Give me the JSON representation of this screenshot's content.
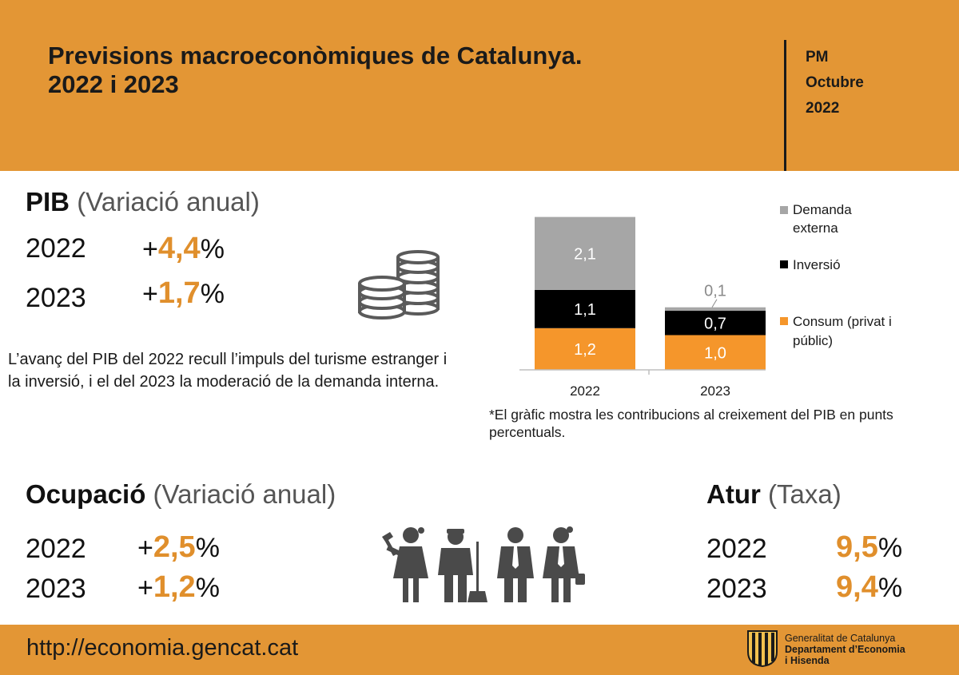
{
  "header": {
    "title_line1": "Previsions macroeconòmiques de Catalunya.",
    "title_line2": "2022 i 2023",
    "meta_line1": "PM",
    "meta_line2": "Octubre",
    "meta_line3": "2022"
  },
  "pib": {
    "title": "PIB",
    "subtitle": "(Variació anual)",
    "rows": [
      {
        "year": "2022",
        "sign": "+",
        "value": "4,4",
        "unit": "%"
      },
      {
        "year": "2023",
        "sign": "+",
        "value": "1,7",
        "unit": "%"
      }
    ],
    "text": "L’avanç del PIB del 2022 recull l’impuls del turisme estranger i la inversió, i el del 2023 la moderació de la demanda interna.",
    "icon": "coins-icon"
  },
  "chart_note": "*El gràfic mostra les contribucions al creixement del PIB en punts percentuals.",
  "chart_data": {
    "type": "bar",
    "stacked": true,
    "categories": [
      "2022",
      "2023"
    ],
    "series": [
      {
        "name": "Consum (privat i públic)",
        "values": [
          1.2,
          1.0
        ],
        "labels": [
          "1,2",
          "1,0"
        ],
        "color": "#f5962b"
      },
      {
        "name": "Inversió",
        "values": [
          1.1,
          0.7
        ],
        "labels": [
          "1,1",
          "0,7"
        ],
        "color": "#000000"
      },
      {
        "name": "Demanda externa",
        "values": [
          2.1,
          0.1
        ],
        "labels": [
          "2,1",
          "0,1"
        ],
        "color": "#a6a6a6"
      }
    ],
    "legend": [
      "Demanda externa",
      "Inversió",
      "Consum (privat i públic)"
    ],
    "legend_position": "right",
    "grid": false
  },
  "ocupacio": {
    "title": "Ocupació",
    "subtitle": "(Variació anual)",
    "rows": [
      {
        "year": "2022",
        "sign": "+",
        "value": "2,5",
        "unit": "%"
      },
      {
        "year": "2023",
        "sign": "+",
        "value": "1,2",
        "unit": "%"
      }
    ],
    "icon": "workers-icon"
  },
  "atur": {
    "title": "Atur",
    "subtitle": "(Taxa)",
    "rows": [
      {
        "year": "2022",
        "value": "9,5",
        "unit": "%"
      },
      {
        "year": "2023",
        "value": "9,4",
        "unit": "%"
      }
    ]
  },
  "footer": {
    "url": "http://economia.gencat.cat",
    "logo_line1": "Generalitat de Catalunya",
    "logo_line2": "Departament d’Economia",
    "logo_line3": "i Hisenda"
  },
  "colors": {
    "accent": "#e39635",
    "number": "#e08f2c"
  }
}
